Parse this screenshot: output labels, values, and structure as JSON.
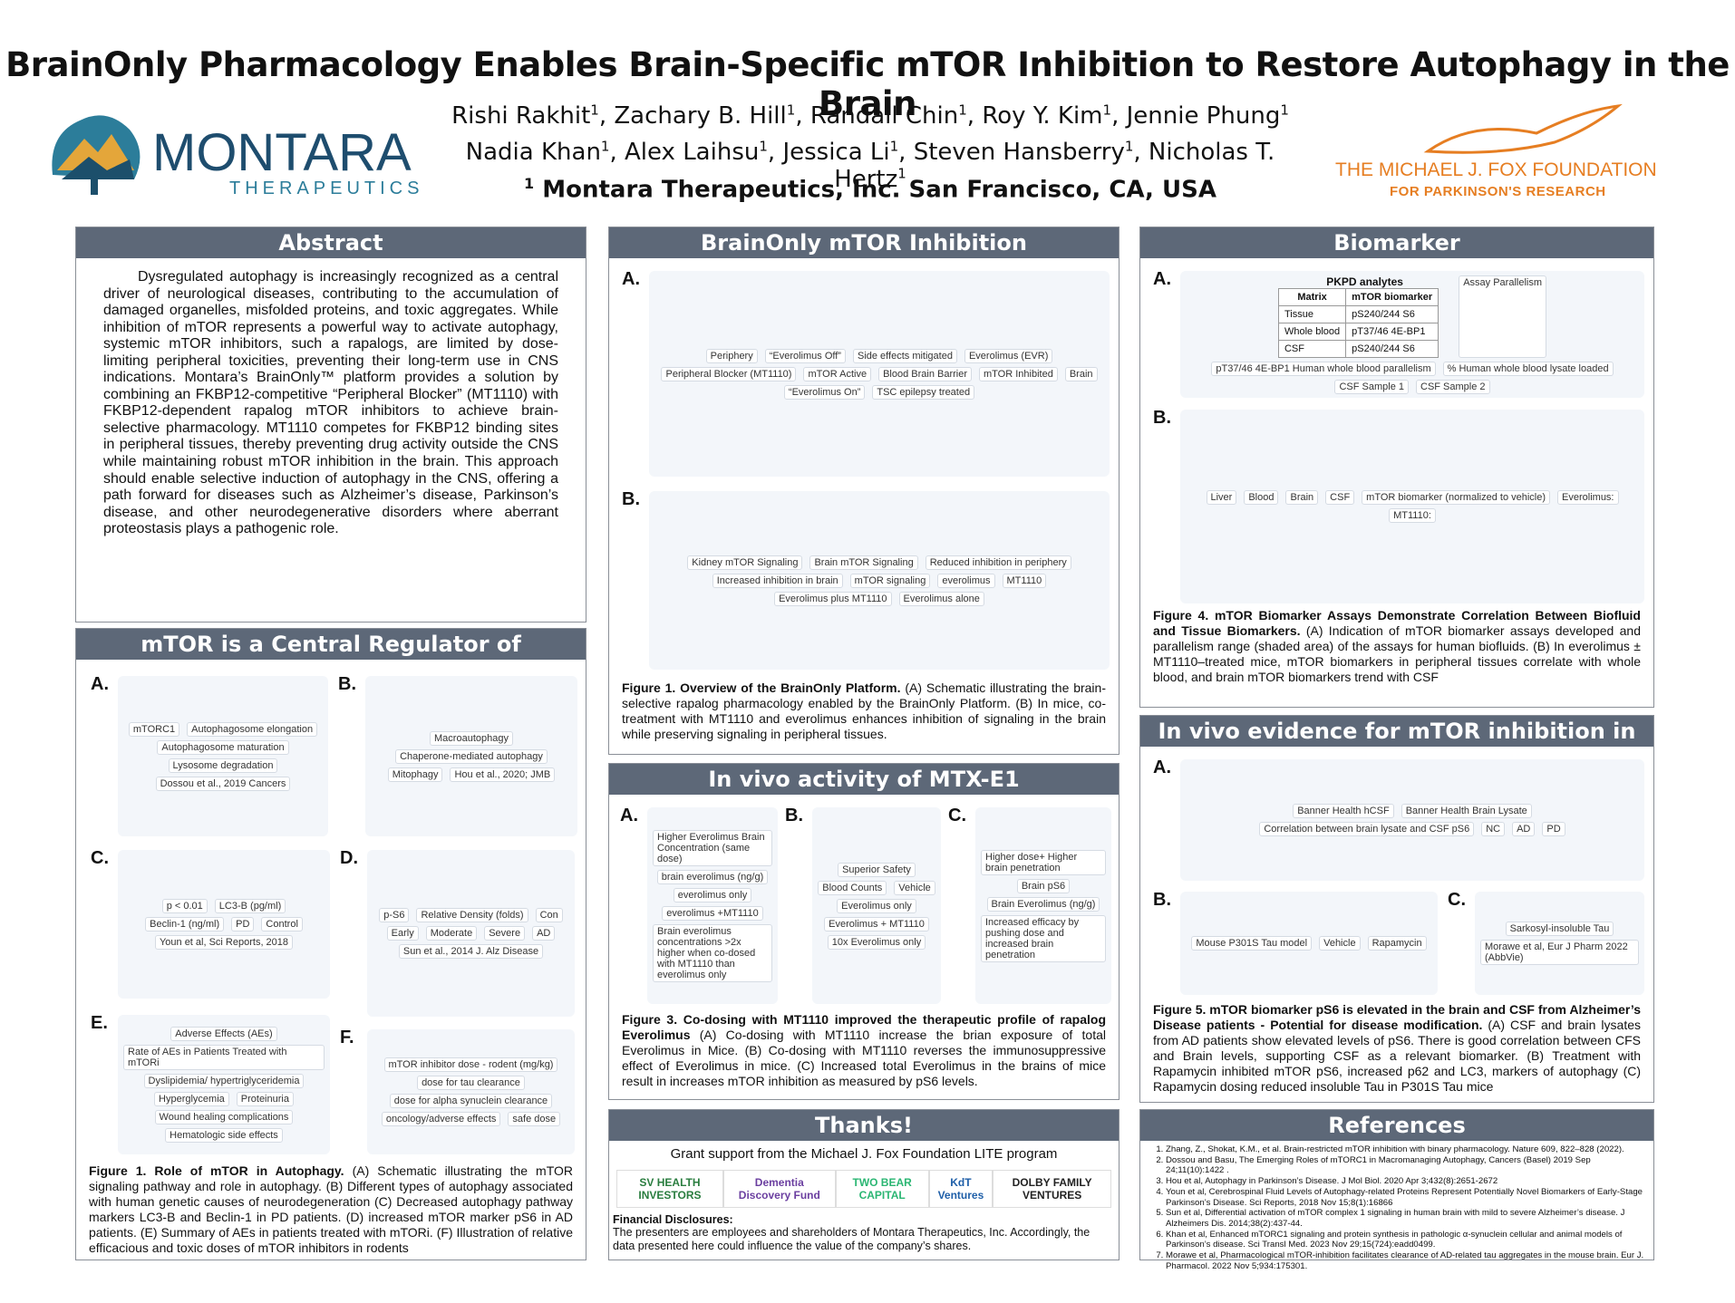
{
  "header": {
    "title": "BrainOnly Pharmacology Enables Brain-Specific mTOR Inhibition to Restore Autophagy in the Brain",
    "authors": [
      "Rishi Rakhit",
      "Zachary B. Hill",
      "Randall Chin",
      "Roy Y. Kim",
      "Jennie Phung",
      "Nadia Khan",
      "Alex Laihsu",
      "Jessica Li",
      "Steven Hansberry",
      "Nicholas T. Hertz"
    ],
    "author_affiliation": "1",
    "affiliation": "Montara Therapeutics, Inc. San Francisco, CA, USA",
    "left_logo": {
      "name": "MONTARA",
      "subtitle": "THERAPEUTICS"
    },
    "right_logo": {
      "name": "THE MICHAEL J. FOX FOUNDATION",
      "subtitle": "FOR PARKINSON'S RESEARCH"
    }
  },
  "abstract": {
    "heading": "Abstract",
    "text": "Dysregulated autophagy is increasingly recognized as a central driver of neurological diseases, contributing to the accumulation of damaged organelles, misfolded proteins, and toxic aggregates. While inhibition of mTOR represents a powerful way to activate autophagy, systemic mTOR inhibitors, such a rapalogs, are limited by dose-limiting peripheral toxicities, preventing their long-term use in CNS indications. Montara’s BrainOnly™ platform provides a solution by combining an FKBP12-competitive “Peripheral Blocker” (MT1110) with FKBP12-dependent rapalog mTOR inhibitors to achieve brain-selective pharmacology. MT1110 competes for FKBP12 binding sites in peripheral tissues, thereby preventing drug activity outside the CNS while maintaining robust mTOR inhibition in the brain. This approach should enable selective induction of autophagy in the CNS, offering a path forward for diseases such as Alzheimer’s disease, Parkinson’s disease, and other neurodegenerative disorders where aberrant proteostasis plays a pathogenic role."
  },
  "mtor_regulator": {
    "heading": "mTOR is a Central Regulator of Autophagy",
    "panels": [
      {
        "label": "A.",
        "texts": [
          "mTORC1",
          "Autophagosome elongation",
          "Autophagosome maturation",
          "Lysosome degradation",
          "Dossou et al., 2019 Cancers"
        ]
      },
      {
        "label": "B.",
        "texts": [
          "Macroautophagy",
          "Chaperone-mediated autophagy",
          "Mitophagy",
          "Hou et al., 2020; JMB"
        ]
      },
      {
        "label": "C.",
        "texts": [
          "p < 0.01",
          "LC3-B (pg/ml)",
          "Beclin-1 (ng/ml)",
          "PD",
          "Control",
          "Youn et al, Sci Reports, 2018"
        ]
      },
      {
        "label": "D.",
        "texts": [
          "p-S6",
          "Relative Density (folds)",
          "Con",
          "Early",
          "Moderate",
          "Severe",
          "AD",
          "Sun et al., 2014 J. Alz Disease"
        ]
      },
      {
        "label": "E.",
        "texts": [
          "Adverse Effects (AEs)",
          "Rate of AEs in Patients Treated with mTORi",
          "Dyslipidemia/ hypertriglyceridemia",
          "Hyperglycemia",
          "Proteinuria",
          "Wound healing complications",
          "Hematologic side effects"
        ]
      },
      {
        "label": "F.",
        "texts": [
          "mTOR inhibitor dose - rodent (mg/kg)",
          "dose for tau clearance",
          "dose for alpha synuclein clearance",
          "oncology/adverse effects",
          "safe dose"
        ]
      }
    ],
    "caption": {
      "title": "Figure 1.  Role of mTOR in Autophagy.",
      "text": "(A) Schematic illustrating the mTOR signaling pathway and role in autophagy. (B) Different types of autophagy associated with human genetic causes of neurodegeneration (C) Decreased autophagy pathway markers LC3-B and Beclin-1 in PD patients. (D) increased mTOR marker pS6 in AD patients. (E) Summary of AEs in patients treated with mTORi. (F) Illustration of relative efficacious and toxic doses of mTOR inhibitors in rodents"
    }
  },
  "brainonly": {
    "heading": "BrainOnly mTOR Inhibition",
    "panels": [
      {
        "label": "A.",
        "texts": [
          "Periphery",
          "“Everolimus Off”",
          "Side effects mitigated",
          "Everolimus (EVR)",
          "Peripheral Blocker (MT1110)",
          "mTOR Active",
          "Blood Brain Barrier",
          "mTOR Inhibited",
          "Brain",
          "“Everolimus On”",
          "TSC epilepsy treated"
        ]
      },
      {
        "label": "B.",
        "texts": [
          "Kidney mTOR Signaling",
          "Brain mTOR Signaling",
          "Reduced inhibition in periphery",
          "Increased inhibition in brain",
          "mTOR signaling",
          "everolimus",
          "MT1110",
          "Everolimus plus MT1110",
          "Everolimus alone"
        ]
      }
    ],
    "caption": {
      "title": "Figure 1.  Overview of the BrainOnly Platform.",
      "text": "(A) Schematic illustrating the brain-selective rapalog pharmacology enabled by the BrainOnly Platform. (B) In mice, co-treatment with MT1110 and everolimus enhances inhibition of signaling in the brain while preserving signaling in peripheral tissues."
    }
  },
  "in_vivo": {
    "heading": "In vivo activity of MTX-E1",
    "panels": [
      {
        "label": "A.",
        "texts": [
          "Higher Everolimus Brain Concentration (same dose)",
          "brain everolimus (ng/g)",
          "everolimus only",
          "everolimus +MT1110",
          "Brain everolimus concentrations >2x higher when co-dosed with MT1110 than everolimus only"
        ]
      },
      {
        "label": "B.",
        "texts": [
          "Superior Safety",
          "Blood Counts",
          "Vehicle",
          "Everolimus only",
          "Everolimus + MT1110",
          "10x Everolimus only"
        ]
      },
      {
        "label": "C.",
        "texts": [
          "Higher dose+ Higher brain penetration",
          "Brain pS6",
          "Brain Everolimus (ng/g)",
          "Increased efficacy by pushing dose and increased brain penetration"
        ]
      }
    ],
    "caption": {
      "title": "Figure 3. Co-dosing with MT1110 improved the therapeutic profile of rapalog Everolimus",
      "text": "(A) Co-dosing with MT1110 increase the brian exposure of total Everolimus in Mice. (B) Co-dosing with MT1110 reverses the immunosuppressive effect of Everolimus in mice. (C) Increased total Everolimus in the brains of mice result in increases mTOR inhibition as measured by pS6 levels."
    }
  },
  "thanks": {
    "heading": "Thanks!",
    "grant": "Grant support from the Michael J. Fox Foundation LITE program",
    "sponsors": [
      "SV HEALTH INVESTORS",
      "Dementia Discovery Fund",
      "TWO BEAR CAPITAL",
      "KdT Ventures",
      "DOLBY FAMILY VENTURES"
    ],
    "disclosures_title": "Financial Disclosures:",
    "disclosures": "The presenters are employees and shareholders of Montara Therapeutics, Inc. Accordingly, the data presented here could influence the value of the company’s shares."
  },
  "biomarker": {
    "heading": "Biomarker",
    "panels": [
      {
        "label": "A.",
        "table": {
          "title": "PKPD analytes",
          "header": [
            "Matrix",
            "mTOR biomarker"
          ],
          "rows": [
            [
              "Tissue",
              "pS240/244 S6"
            ],
            [
              "Whole blood",
              "pT37/46 4E-BP1"
            ],
            [
              "CSF",
              "pS240/244 S6"
            ]
          ]
        },
        "texts": [
          "Assay Parallelism",
          "pT37/46 4E-BP1 Human whole blood parallelism",
          "% Human whole blood lysate loaded",
          "CSF Sample 1",
          "CSF Sample 2"
        ]
      },
      {
        "label": "B.",
        "texts": [
          "Liver",
          "Blood",
          "Brain",
          "CSF",
          "mTOR biomarker (normalized to vehicle)",
          "Everolimus:",
          "MT1110:"
        ]
      }
    ],
    "caption": {
      "title": "Figure 4. mTOR Biomarker Assays Demonstrate Correlation Between Biofluid and Tissue Biomarkers.",
      "text": "(A) Indication of mTOR biomarker assays developed and parallelism range (shaded area) of the assays for human biofluids. (B) In everolimus ± MT1110–treated mice, mTOR biomarkers in peripheral tissues correlate with whole blood, and brain mTOR biomarkers trend with CSF"
    }
  },
  "ad_pd": {
    "heading": "In vivo evidence for mTOR inhibition in AD/PD",
    "panels": [
      {
        "label": "A.",
        "texts": [
          "Banner Health hCSF",
          "Banner Health Brain Lysate",
          "Correlation between brain lysate and CSF pS6",
          "NC",
          "AD",
          "PD"
        ]
      },
      {
        "label": "B.",
        "texts": [
          "Mouse P301S Tau model",
          "Vehicle",
          "Rapamycin"
        ]
      },
      {
        "label": "C.",
        "texts": [
          "Sarkosyl-insoluble Tau",
          "Morawe et al, Eur J Pharm 2022 (AbbVie)"
        ]
      }
    ],
    "caption": {
      "title": "Figure 5.  mTOR biomarker pS6 is elevated in the brain and CSF from Alzheimer’s Disease patients - Potential for disease modification.",
      "text": "(A) CSF and brain lysates from AD patients show elevated levels of pS6. There is good correlation between CFS and Brain levels, supporting CSF as a relevant biomarker. (B) Treatment with Rapamycin inhibited mTOR pS6, increased p62 and LC3, markers of autophagy (C) Rapamycin dosing reduced insoluble Tau in P301S Tau mice"
    }
  },
  "references": {
    "heading": "References",
    "items": [
      "Zhang, Z., Shokat, K.M., et al. Brain-restricted mTOR inhibition with binary pharmacology. Nature 609, 822–828 (2022).",
      "Dossou and Basu, The Emerging Roles of mTORC1 in Macromanaging Autophagy, Cancers (Basel) 2019 Sep 24;11(10):1422 .",
      "Hou et al, Autophagy in Parkinson’s Disease. J Mol Biol. 2020 Apr 3;432(8):2651-2672",
      "Youn et al, Cerebrospinal Fluid Levels of Autophagy-related Proteins Represent Potentially Novel Biomarkers of Early-Stage Parkinson’s Disease. Sci Reports, 2018 Nov 15;8(1):16866",
      "Sun et al, Differential activation of mTOR complex 1 signaling in human brain with mild to severe Alzheimer’s disease. J Alzheimers Dis. 2014;38(2):437-44.",
      "Khan et al, Enhanced mTORC1 signaling and protein synthesis in pathologic α-synuclein cellular and animal models of Parkinson’s disease. Sci Transl Med. 2023 Nov 29;15(724):eadd0499.",
      "Morawe et al, Pharmacological mTOR-inhibition facilitates clearance of AD-related tau aggregates in the mouse brain. Eur J. Pharmacol. 2022 Nov 5;934:175301."
    ]
  }
}
